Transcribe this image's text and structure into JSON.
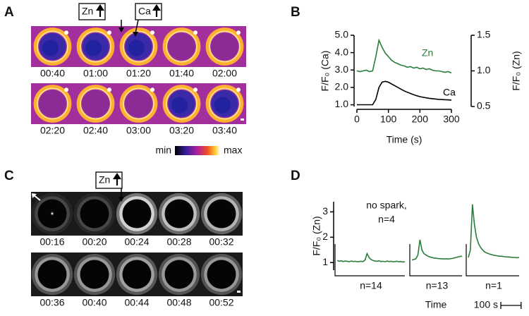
{
  "panels": {
    "a": {
      "label": "A",
      "times": [
        "00:40",
        "01:00",
        "01:20",
        "01:40",
        "02:00",
        "02:20",
        "02:40",
        "03:00",
        "03:20",
        "03:40"
      ],
      "markers": [
        "Zn",
        "Ca"
      ],
      "colorbar": {
        "min": "min",
        "max": "max"
      }
    },
    "c": {
      "label": "C",
      "times": [
        "00:16",
        "00:20",
        "00:24",
        "00:28",
        "00:32",
        "00:36",
        "00:40",
        "00:44",
        "00:48",
        "00:52"
      ],
      "markers": [
        "Zn"
      ]
    }
  },
  "chart_data": [
    {
      "type": "line",
      "label": "B",
      "xlabel": "Time (s)",
      "ylabel": "F/F₀ (Ca)",
      "y2label": "F/F₀ (Zn)",
      "x": [
        0,
        10,
        20,
        30,
        40,
        50,
        60,
        70,
        80,
        90,
        100,
        110,
        120,
        130,
        140,
        150,
        160,
        170,
        180,
        190,
        200,
        210,
        220,
        230,
        240,
        250,
        260,
        270,
        280,
        290,
        300
      ],
      "xlim": [
        0,
        300
      ],
      "xticks": [
        0,
        100,
        200,
        300
      ],
      "ylim": [
        0.9,
        5.0
      ],
      "yticks": [
        {
          "value": 1,
          "label": "1.0"
        },
        {
          "value": 2,
          "label": "2.0"
        },
        {
          "value": 3,
          "label": "3.0"
        },
        {
          "value": 4,
          "label": "4.0"
        },
        {
          "value": 5,
          "label": "5.0"
        }
      ],
      "y2lim": [
        0.5,
        1.5
      ],
      "y2ticks": [
        0.5,
        {
          "value": 1,
          "label": "1.0"
        },
        1.5
      ],
      "series": [
        {
          "name": "Zn",
          "color": "#2a7d3e",
          "axis": "y2",
          "values": [
            1.0,
            0.99,
            1.0,
            1.01,
            0.99,
            1.0,
            1.2,
            1.43,
            1.33,
            1.25,
            1.2,
            1.15,
            1.12,
            1.1,
            1.08,
            1.07,
            1.05,
            1.06,
            1.04,
            1.05,
            1.03,
            1.04,
            1.02,
            1.03,
            1.01,
            1.0,
            1.0,
            0.99,
            0.98,
            0.99,
            0.97
          ]
        },
        {
          "name": "Ca",
          "color": "#000000",
          "values": [
            1.0,
            1.0,
            1.0,
            1.0,
            1.0,
            1.0,
            1.3,
            2.0,
            2.3,
            2.35,
            2.3,
            2.2,
            2.1,
            2.0,
            1.9,
            1.8,
            1.72,
            1.65,
            1.58,
            1.52,
            1.47,
            1.43,
            1.4,
            1.37,
            1.35,
            1.33,
            1.31,
            1.3,
            1.29,
            1.28,
            1.27
          ]
        }
      ]
    },
    {
      "type": "line",
      "label": "D",
      "ylabel": "F/F₀ (Zn)",
      "xlabel": "Time",
      "color": "#2a7d3e",
      "ylim": [
        0.7,
        3.4
      ],
      "yticks": [
        1,
        2,
        3
      ],
      "annotation": [
        "no spark,",
        "n=4"
      ],
      "scale_bar": {
        "value": 100,
        "label": "100 s"
      },
      "subplots": [
        {
          "label": "n=14",
          "xlim": [
            0,
            340
          ],
          "x": [
            0,
            10,
            20,
            30,
            40,
            50,
            60,
            70,
            80,
            90,
            100,
            110,
            120,
            130,
            140,
            150,
            160,
            170,
            180,
            190,
            200,
            210,
            220,
            230,
            240,
            250,
            260,
            270,
            280,
            290,
            300,
            310,
            320,
            330,
            340
          ],
          "values": [
            1.08,
            1.05,
            1.07,
            1.04,
            1.06,
            1.05,
            1.03,
            1.06,
            1.04,
            1.05,
            1.03,
            1.04,
            1.05,
            1.04,
            1.1,
            1.35,
            1.2,
            1.12,
            1.08,
            1.06,
            1.05,
            1.07,
            1.04,
            1.05,
            1.03,
            1.06,
            1.04,
            1.05,
            1.03,
            1.04,
            1.05,
            1.03,
            1.04,
            1.02,
            1.03
          ]
        },
        {
          "label": "n=13",
          "xlim": [
            0,
            250
          ],
          "x": [
            0,
            10,
            20,
            30,
            40,
            50,
            60,
            70,
            80,
            90,
            100,
            110,
            120,
            130,
            140,
            150,
            160,
            170,
            180,
            190,
            200,
            210,
            220,
            230,
            240,
            250
          ],
          "values": [
            1.1,
            1.12,
            1.15,
            1.3,
            1.9,
            1.5,
            1.35,
            1.3,
            1.25,
            1.22,
            1.2,
            1.18,
            1.17,
            1.16,
            1.15,
            1.15,
            1.14,
            1.15,
            1.14,
            1.15,
            1.16,
            1.18,
            1.2,
            1.22,
            1.24,
            1.25
          ]
        },
        {
          "label": "n=1",
          "xlim": [
            0,
            250
          ],
          "x": [
            0,
            10,
            20,
            30,
            40,
            50,
            60,
            70,
            80,
            90,
            100,
            110,
            120,
            130,
            140,
            150,
            160,
            170,
            180,
            190,
            200,
            210,
            220,
            230,
            240,
            250
          ],
          "values": [
            1.2,
            1.5,
            3.3,
            2.5,
            2.0,
            1.75,
            1.6,
            1.5,
            1.42,
            1.38,
            1.35,
            1.32,
            1.3,
            1.28,
            1.27,
            1.25,
            1.25,
            1.24,
            1.23,
            1.22,
            1.22,
            1.21,
            1.2,
            1.2,
            1.19,
            1.2
          ]
        }
      ]
    }
  ]
}
